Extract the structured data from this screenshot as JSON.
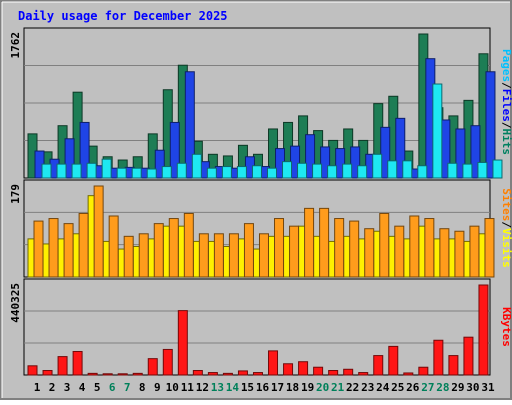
{
  "chart_data": {
    "title": "Daily usage for December 2025",
    "type": "bar",
    "categories": [
      "1",
      "2",
      "3",
      "4",
      "5",
      "6",
      "7",
      "8",
      "9",
      "10",
      "11",
      "12",
      "13",
      "14",
      "15",
      "16",
      "17",
      "18",
      "19",
      "20",
      "21",
      "22",
      "23",
      "24",
      "25",
      "26",
      "27",
      "28",
      "29",
      "30",
      "31"
    ],
    "weekend_days": [
      "6",
      "7",
      "13",
      "14",
      "20",
      "21",
      "27",
      "28"
    ],
    "panels": [
      {
        "ylim": [
          0,
          1762
        ],
        "ytick_label": "1762",
        "legend": [
          "Pages",
          "Files",
          "Hits"
        ],
        "series": [
          {
            "name": "Hits",
            "color": "#1d7d55",
            "values": [
              540,
              320,
              640,
              1050,
              390,
              260,
              220,
              260,
              540,
              1080,
              1380,
              450,
              290,
              270,
              400,
              290,
              600,
              680,
              760,
              580,
              460,
              600,
              460,
              910,
              1000,
              330,
              1762,
              860,
              760,
              950,
              1520
            ]
          },
          {
            "name": "Files",
            "color": "#1f44e6",
            "values": [
              330,
              230,
              480,
              680,
              150,
              120,
              130,
              120,
              340,
              680,
              1300,
              200,
              140,
              120,
              260,
              140,
              360,
              390,
              530,
              380,
              360,
              380,
              290,
              620,
              730,
              110,
              1460,
              710,
              600,
              640,
              1300
            ]
          },
          {
            "name": "Pages",
            "color": "#1ee8f2",
            "values": [
              170,
              170,
              170,
              180,
              230,
              120,
              120,
              110,
              140,
              180,
              290,
              120,
              140,
              140,
              150,
              120,
              200,
              180,
              170,
              150,
              170,
              150,
              290,
              210,
              210,
              150,
              1150,
              180,
              170,
              190,
              220
            ]
          }
        ]
      },
      {
        "ylim": [
          0,
          179
        ],
        "ytick_label": "179",
        "legend": [
          "Sites",
          "Visits"
        ],
        "series": [
          {
            "name": "Visits",
            "color": "#fff000",
            "values": [
              75,
              65,
              75,
              85,
              160,
              70,
              55,
              60,
              75,
              100,
              100,
              70,
              70,
              60,
              75,
              55,
              80,
              80,
              100,
              80,
              70,
              80,
              75,
              90,
              80,
              75,
              100,
              75,
              75,
              70,
              85
            ]
          },
          {
            "name": "Sites",
            "color": "#ff9c1c",
            "values": [
              110,
              115,
              105,
              125,
              179,
              120,
              80,
              85,
              105,
              115,
              125,
              85,
              85,
              85,
              105,
              85,
              115,
              100,
              135,
              135,
              115,
              110,
              95,
              125,
              100,
              120,
              115,
              95,
              90,
              100,
              115
            ]
          }
        ]
      },
      {
        "ylim": [
          0,
          440325
        ],
        "ytick_label": "440325",
        "legend": [
          "KBytes"
        ],
        "series": [
          {
            "name": "KBytes",
            "color": "#ff1515",
            "values": [
              45000,
              22000,
              90000,
              115000,
              8000,
              6000,
              6000,
              8000,
              80000,
              125000,
              315000,
              22000,
              12000,
              8000,
              20000,
              12000,
              118000,
              55000,
              65000,
              38000,
              22000,
              28000,
              12000,
              95000,
              140000,
              10000,
              38000,
              170000,
              95000,
              185000,
              440325
            ]
          }
        ]
      }
    ]
  }
}
